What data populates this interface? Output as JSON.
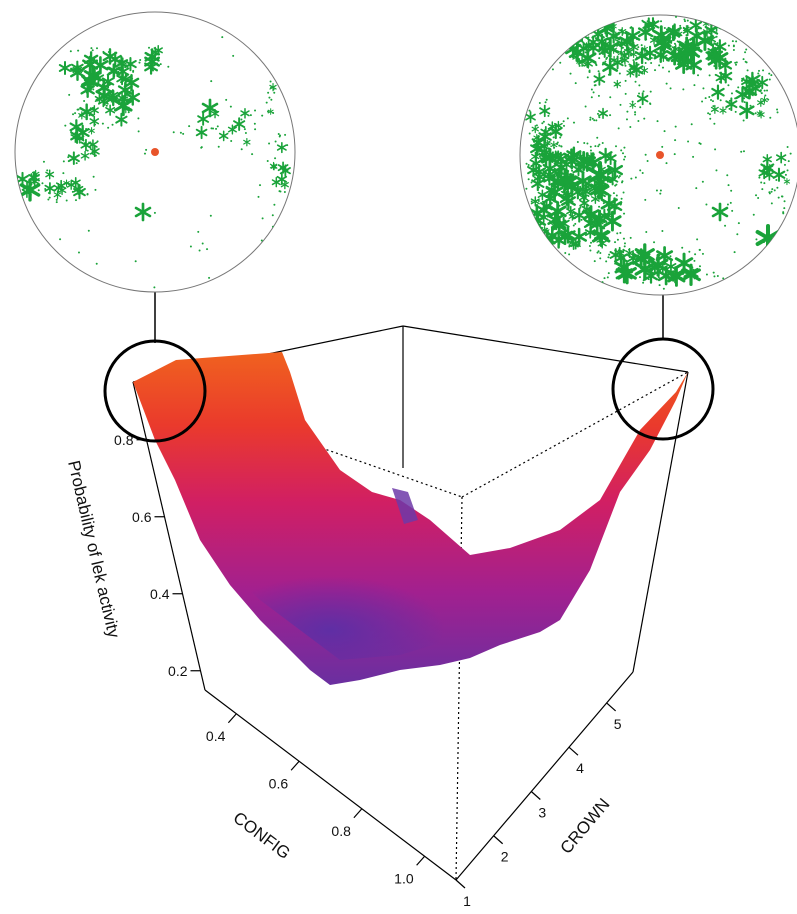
{
  "chart_data": {
    "type": "surface3d",
    "zlabel": "Probability of lek activity",
    "xlabel": "CONFIG",
    "ylabel": "CROWN",
    "z_ticks": [
      "0.2",
      "0.4",
      "0.6",
      "0.8"
    ],
    "config_ticks": [
      "0.4",
      "0.6",
      "0.8",
      "1.0"
    ],
    "crown_ticks": [
      "1",
      "2",
      "3",
      "4",
      "5"
    ],
    "zlim": [
      0.15,
      0.95
    ],
    "colormap": [
      "#6a2fa0",
      "#a2208f",
      "#d11f63",
      "#ea3a2c",
      "#f0621f"
    ],
    "highlight_color": "#000000",
    "point_color": "#1aa33a",
    "center_color": "#e8542a",
    "surface_levels": [
      0.88,
      0.8,
      0.68,
      0.55,
      0.42,
      0.28,
      0.18,
      0.26,
      0.48,
      0.72,
      0.92
    ]
  }
}
